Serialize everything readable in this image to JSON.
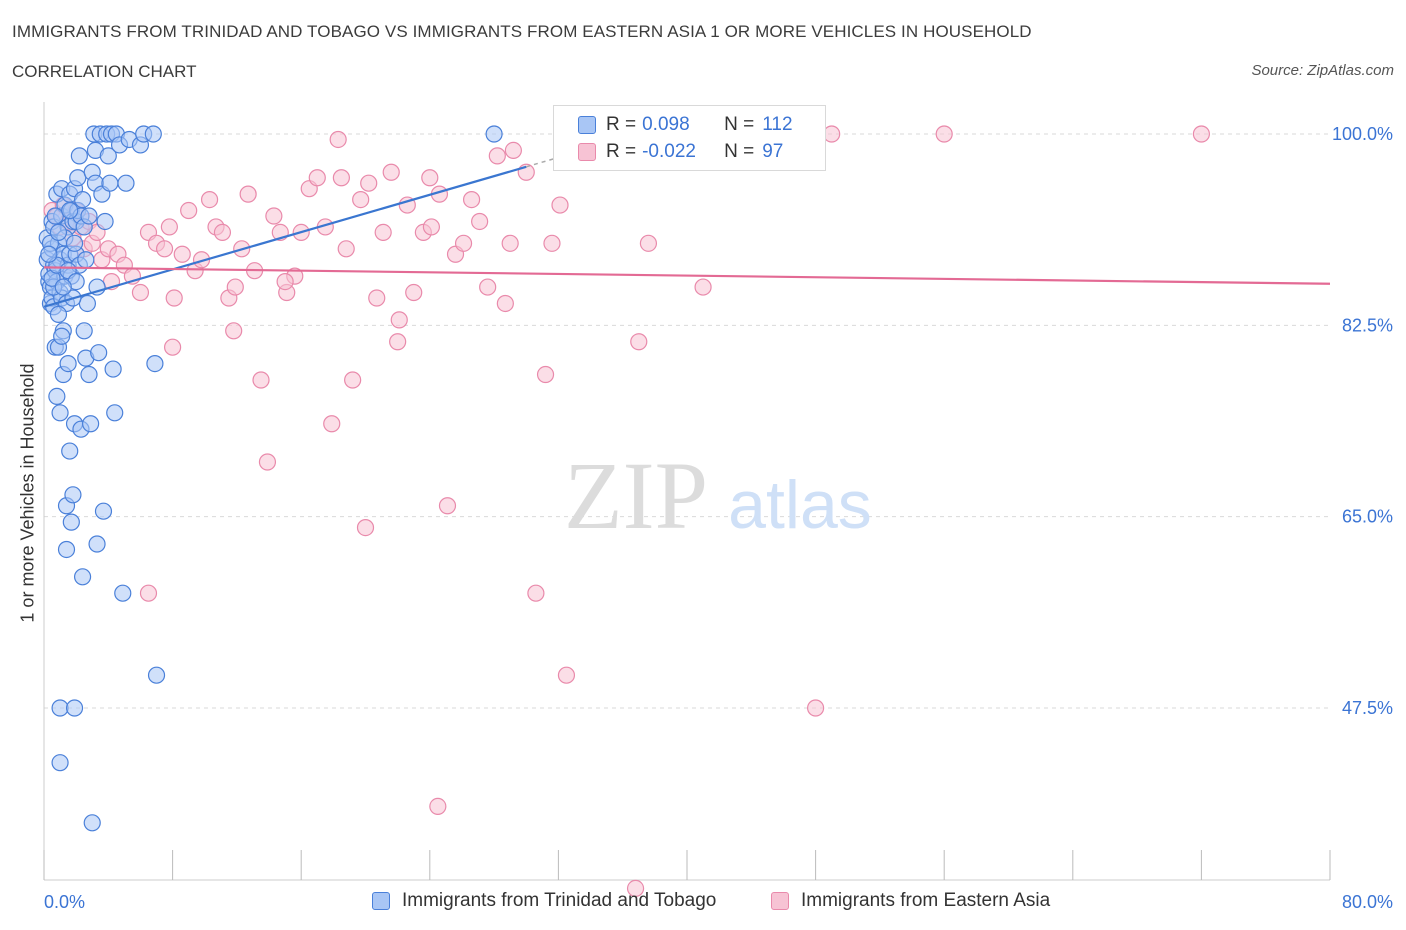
{
  "header": {
    "title": "IMMIGRANTS FROM TRINIDAD AND TOBAGO VS IMMIGRANTS FROM EASTERN ASIA 1 OR MORE VEHICLES IN HOUSEHOLD",
    "subtitle": "CORRELATION CHART",
    "source": "Source: ZipAtlas.com"
  },
  "watermark": {
    "zip": "ZIP",
    "atlas": "atlas"
  },
  "legend": {
    "series1": {
      "r_label": "R =",
      "r_value": "0.098",
      "n_label": "N =",
      "n_value": "112",
      "color": "#5b8ee6"
    },
    "series2": {
      "r_label": "R =",
      "r_value": "-0.022",
      "n_label": "N =",
      "n_value": "97",
      "color": "#f08eb0"
    }
  },
  "colors": {
    "blue_fill": "#a9c6f5",
    "blue_stroke": "#4a80d9",
    "blue_line": "#3a76d0",
    "pink_fill": "#f7c3d4",
    "pink_stroke": "#e98aab",
    "pink_line": "#e36a94",
    "grid": "#d9d9d9",
    "axis_text": "#3b74d4"
  },
  "chart_data": {
    "type": "scatter",
    "title": "IMMIGRANTS FROM TRINIDAD AND TOBAGO VS IMMIGRANTS FROM EASTERN ASIA 1 OR MORE VEHICLES IN HOUSEHOLD",
    "xlabel": "",
    "ylabel": "1 or more Vehicles in Household",
    "xlim": [
      0,
      80
    ],
    "ylim": [
      30,
      102
    ],
    "x_tick_labels": [
      "0.0%",
      "80.0%"
    ],
    "y_ticks": [
      100.0,
      82.5,
      65.0,
      47.5
    ],
    "y_tick_labels": [
      "100.0%",
      "82.5%",
      "65.0%",
      "47.5%"
    ],
    "grid": true,
    "legend_position": "bottom",
    "series": [
      {
        "name": "Immigrants from Trinidad and Tobago",
        "color": "#5b8ee6",
        "trend": {
          "x": [
            0.0,
            30.0
          ],
          "y": [
            84.2,
            97.0
          ]
        },
        "points": [
          [
            0.2,
            90.5
          ],
          [
            0.2,
            88.5
          ],
          [
            0.3,
            86.5
          ],
          [
            0.3,
            87.2
          ],
          [
            0.4,
            86.0
          ],
          [
            0.4,
            84.5
          ],
          [
            0.5,
            92.0
          ],
          [
            0.5,
            89.5
          ],
          [
            0.5,
            85.0
          ],
          [
            0.6,
            91.5
          ],
          [
            0.6,
            88.0
          ],
          [
            0.6,
            84.2
          ],
          [
            0.7,
            87.5
          ],
          [
            0.7,
            80.5
          ],
          [
            0.8,
            94.5
          ],
          [
            0.8,
            86.5
          ],
          [
            0.8,
            76.0
          ],
          [
            0.9,
            90.0
          ],
          [
            0.9,
            80.5
          ],
          [
            1.0,
            88.5
          ],
          [
            1.0,
            85.5
          ],
          [
            1.0,
            74.5
          ],
          [
            1.0,
            47.5
          ],
          [
            1.1,
            95.0
          ],
          [
            1.1,
            92.5
          ],
          [
            1.1,
            85.0
          ],
          [
            1.2,
            89.0
          ],
          [
            1.2,
            82.0
          ],
          [
            1.2,
            78.0
          ],
          [
            1.3,
            93.5
          ],
          [
            1.3,
            87.0
          ],
          [
            1.4,
            84.5
          ],
          [
            1.4,
            66.0
          ],
          [
            1.4,
            62.0
          ],
          [
            1.5,
            91.5
          ],
          [
            1.5,
            88.0
          ],
          [
            1.5,
            79.0
          ],
          [
            1.6,
            94.5
          ],
          [
            1.6,
            89.0
          ],
          [
            1.6,
            71.0
          ],
          [
            1.7,
            93.0
          ],
          [
            1.7,
            87.0
          ],
          [
            1.7,
            64.5
          ],
          [
            1.8,
            92.0
          ],
          [
            1.8,
            67.0
          ],
          [
            1.9,
            95.0
          ],
          [
            1.9,
            73.5
          ],
          [
            1.9,
            47.5
          ],
          [
            2.0,
            92.0
          ],
          [
            2.0,
            89.0
          ],
          [
            2.1,
            96.0
          ],
          [
            2.1,
            93.0
          ],
          [
            2.2,
            98.0
          ],
          [
            2.3,
            92.5
          ],
          [
            2.3,
            73.0
          ],
          [
            2.4,
            59.5
          ],
          [
            2.5,
            91.5
          ],
          [
            2.5,
            82.0
          ],
          [
            2.6,
            79.5
          ],
          [
            2.7,
            84.5
          ],
          [
            2.8,
            92.5
          ],
          [
            2.8,
            78.0
          ],
          [
            2.9,
            73.5
          ],
          [
            3.0,
            96.5
          ],
          [
            3.0,
            37.0
          ],
          [
            3.1,
            100.0
          ],
          [
            3.2,
            95.5
          ],
          [
            3.2,
            98.5
          ],
          [
            3.3,
            62.5
          ],
          [
            3.4,
            80.0
          ],
          [
            3.5,
            100.0
          ],
          [
            3.6,
            94.5
          ],
          [
            3.7,
            65.5
          ],
          [
            3.8,
            92.0
          ],
          [
            3.9,
            100.0
          ],
          [
            4.0,
            98.0
          ],
          [
            4.1,
            95.5
          ],
          [
            4.2,
            100.0
          ],
          [
            4.3,
            78.5
          ],
          [
            4.4,
            74.5
          ],
          [
            4.5,
            100.0
          ],
          [
            4.7,
            99.0
          ],
          [
            4.9,
            58.0
          ],
          [
            5.1,
            95.5
          ],
          [
            5.3,
            99.5
          ],
          [
            6.0,
            99.0
          ],
          [
            6.2,
            100.0
          ],
          [
            6.8,
            100.0
          ],
          [
            6.9,
            79.0
          ],
          [
            7.0,
            50.5
          ],
          [
            28.0,
            100.0
          ],
          [
            1.0,
            42.5
          ],
          [
            0.6,
            86.0
          ],
          [
            0.9,
            83.5
          ],
          [
            1.3,
            90.5
          ],
          [
            1.8,
            85.0
          ],
          [
            2.2,
            88.0
          ],
          [
            0.4,
            90.0
          ],
          [
            0.7,
            92.5
          ],
          [
            1.1,
            81.5
          ],
          [
            2.6,
            88.5
          ],
          [
            3.3,
            86.0
          ],
          [
            0.5,
            86.8
          ],
          [
            0.8,
            88.0
          ],
          [
            1.5,
            87.5
          ],
          [
            2.0,
            86.5
          ],
          [
            0.3,
            89.0
          ],
          [
            1.2,
            86.0
          ],
          [
            1.9,
            90.0
          ],
          [
            2.4,
            94.0
          ],
          [
            0.9,
            91.0
          ],
          [
            1.6,
            93.0
          ]
        ]
      },
      {
        "name": "Immigrants from Eastern Asia",
        "color": "#f08eb0",
        "trend": {
          "x": [
            0.0,
            80.0
          ],
          "y": [
            87.8,
            86.3
          ]
        },
        "points": [
          [
            0.5,
            93.0
          ],
          [
            0.8,
            92.5
          ],
          [
            1.0,
            91.5
          ],
          [
            1.2,
            93.5
          ],
          [
            1.5,
            92.0
          ],
          [
            1.8,
            90.5
          ],
          [
            2.0,
            93.0
          ],
          [
            2.3,
            91.5
          ],
          [
            2.5,
            89.5
          ],
          [
            2.8,
            92.0
          ],
          [
            3.0,
            90.0
          ],
          [
            3.3,
            91.0
          ],
          [
            3.6,
            88.5
          ],
          [
            4.0,
            89.5
          ],
          [
            4.2,
            86.5
          ],
          [
            4.6,
            89.0
          ],
          [
            5.0,
            88.0
          ],
          [
            5.5,
            87.0
          ],
          [
            6.0,
            85.5
          ],
          [
            6.5,
            91.0
          ],
          [
            7.0,
            90.0
          ],
          [
            7.5,
            89.5
          ],
          [
            7.8,
            91.5
          ],
          [
            8.1,
            85.0
          ],
          [
            8.6,
            89.0
          ],
          [
            9.0,
            93.0
          ],
          [
            9.4,
            87.5
          ],
          [
            9.8,
            88.5
          ],
          [
            10.3,
            94.0
          ],
          [
            10.7,
            91.5
          ],
          [
            11.1,
            91.0
          ],
          [
            11.5,
            85.0
          ],
          [
            11.9,
            86.0
          ],
          [
            12.3,
            89.5
          ],
          [
            12.7,
            94.5
          ],
          [
            13.1,
            87.5
          ],
          [
            13.5,
            77.5
          ],
          [
            13.9,
            70.0
          ],
          [
            14.3,
            92.5
          ],
          [
            14.7,
            91.0
          ],
          [
            15.1,
            85.5
          ],
          [
            15.6,
            87.0
          ],
          [
            16.0,
            91.0
          ],
          [
            16.5,
            95.0
          ],
          [
            17.0,
            96.0
          ],
          [
            17.5,
            91.5
          ],
          [
            17.9,
            73.5
          ],
          [
            18.3,
            99.5
          ],
          [
            18.8,
            89.5
          ],
          [
            19.2,
            77.5
          ],
          [
            19.7,
            94.0
          ],
          [
            20.2,
            95.5
          ],
          [
            20.7,
            85.0
          ],
          [
            21.1,
            91.0
          ],
          [
            21.6,
            96.5
          ],
          [
            22.1,
            83.0
          ],
          [
            22.6,
            93.5
          ],
          [
            23.0,
            85.5
          ],
          [
            23.6,
            91.0
          ],
          [
            24.1,
            91.5
          ],
          [
            24.6,
            94.5
          ],
          [
            25.1,
            66.0
          ],
          [
            25.6,
            89.0
          ],
          [
            26.1,
            90.0
          ],
          [
            26.6,
            94.0
          ],
          [
            27.1,
            92.0
          ],
          [
            27.6,
            86.0
          ],
          [
            28.2,
            98.0
          ],
          [
            28.7,
            84.5
          ],
          [
            29.2,
            98.5
          ],
          [
            30.0,
            96.5
          ],
          [
            31.2,
            78.0
          ],
          [
            31.6,
            90.0
          ],
          [
            32.1,
            93.5
          ],
          [
            33.0,
            100.0
          ],
          [
            35.0,
            100.0
          ],
          [
            37.0,
            81.0
          ],
          [
            37.6,
            90.0
          ],
          [
            40.0,
            100.0
          ],
          [
            41.0,
            86.0
          ],
          [
            48.0,
            47.5
          ],
          [
            49.0,
            100.0
          ],
          [
            56.0,
            100.0
          ],
          [
            72.0,
            100.0
          ],
          [
            24.5,
            38.5
          ],
          [
            36.8,
            31.0
          ],
          [
            32.5,
            50.5
          ],
          [
            30.6,
            58.0
          ],
          [
            6.5,
            58.0
          ],
          [
            8.0,
            80.5
          ],
          [
            11.8,
            82.0
          ],
          [
            15.0,
            86.5
          ],
          [
            20.0,
            64.0
          ],
          [
            22.0,
            81.0
          ],
          [
            29.0,
            90.0
          ],
          [
            24.0,
            96.0
          ],
          [
            18.5,
            96.0
          ]
        ]
      }
    ]
  },
  "bottom_legend": {
    "series1_label": "Immigrants from Trinidad and Tobago",
    "series2_label": "Immigrants from Eastern Asia"
  }
}
